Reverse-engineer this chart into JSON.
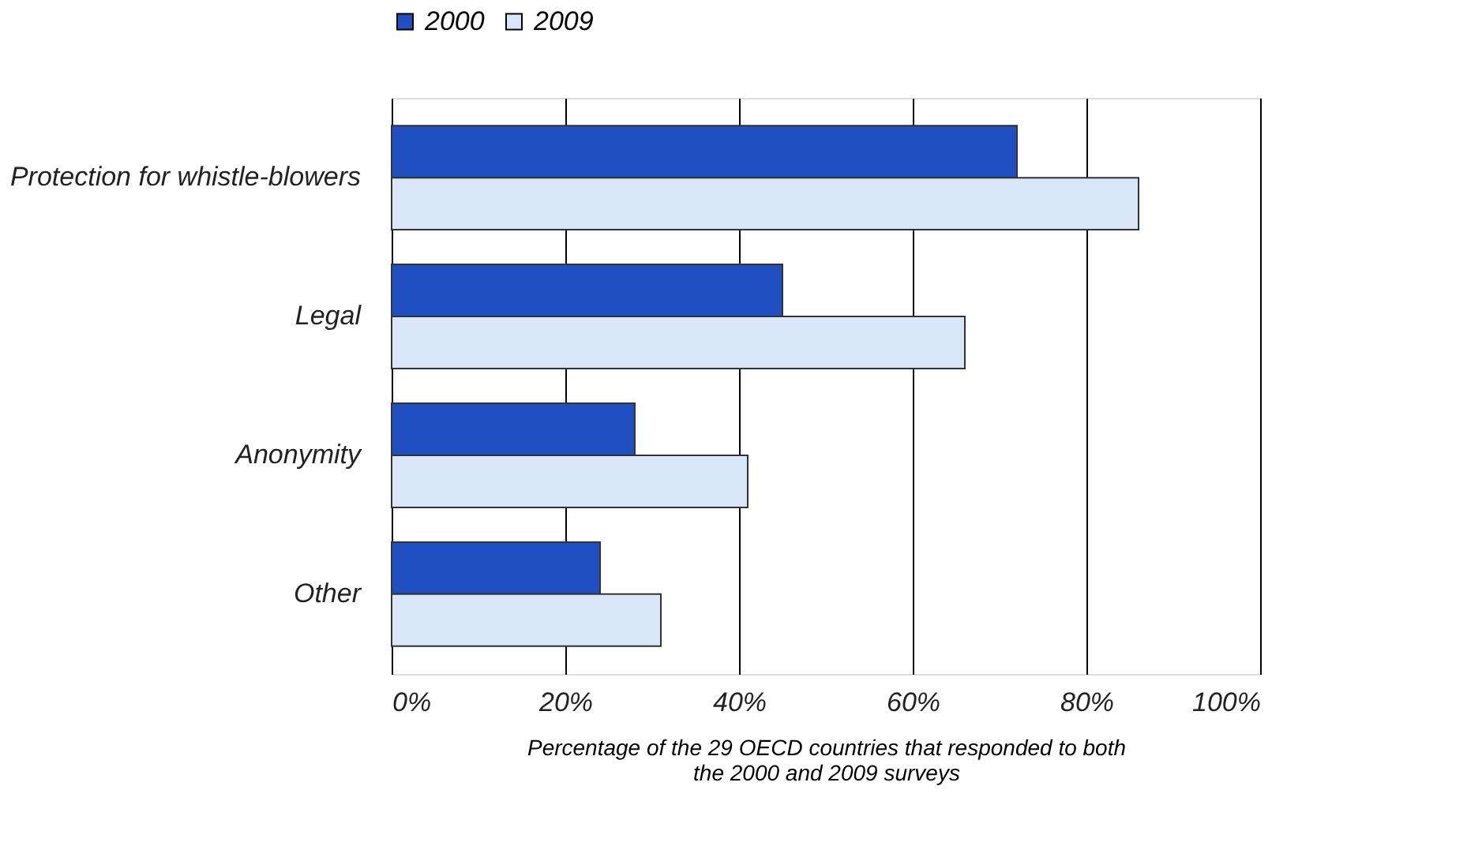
{
  "chart_data": {
    "type": "bar",
    "orientation": "horizontal",
    "categories": [
      "Protection for whistle-blowers",
      "Legal",
      "Anonymity",
      "Other"
    ],
    "series": [
      {
        "name": "2000",
        "color": "#1f4fc0",
        "values": [
          72,
          45,
          28,
          24
        ]
      },
      {
        "name": "2009",
        "color": "#d8e6f8",
        "values": [
          86,
          66,
          41,
          31
        ]
      }
    ],
    "xlabel": "Percentage of the 29 OECD countries that responded  to both\nthe 2000 and 2009 surveys",
    "xlim": [
      0,
      100
    ],
    "xticks": [
      {
        "value": 0,
        "label": "0%"
      },
      {
        "value": 20,
        "label": "20%"
      },
      {
        "value": 40,
        "label": "40%"
      },
      {
        "value": 60,
        "label": "60%"
      },
      {
        "value": 80,
        "label": "80%"
      },
      {
        "value": 100,
        "label": "100%"
      }
    ],
    "grid": "x",
    "legend": "top"
  }
}
